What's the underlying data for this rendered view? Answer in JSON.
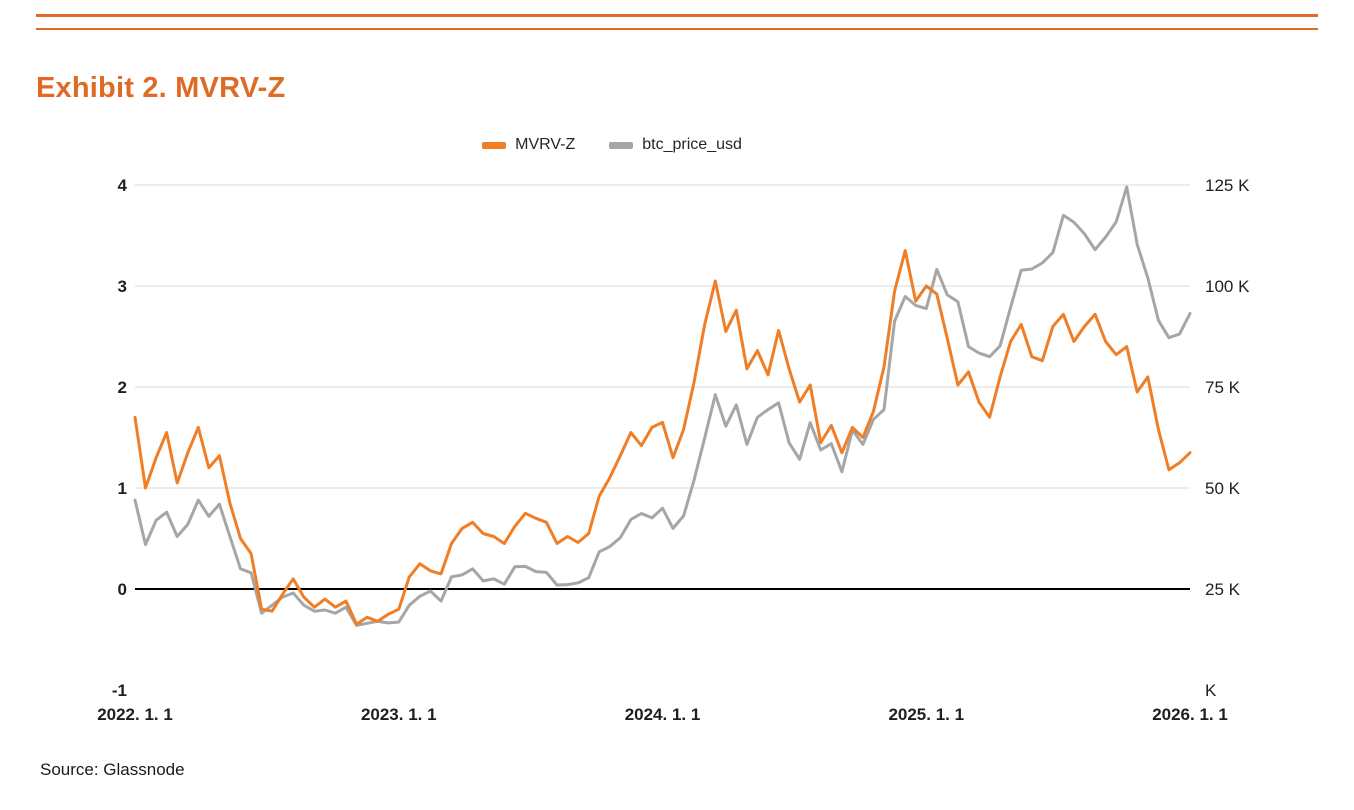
{
  "page": {
    "title": "Exhibit 2. MVRV-Z",
    "source": "Source: Glassnode",
    "accent_color": "#DE6A26",
    "grid_color": "#D9D9D9",
    "zero_line_color": "#000000"
  },
  "chart_data": {
    "type": "line",
    "title": "Exhibit 2. MVRV-Z",
    "legend_position": "top-center",
    "grid": true,
    "left_axis": {
      "range": [
        -1,
        4
      ],
      "ticks": [
        {
          "label": "4",
          "value": 4
        },
        {
          "label": "3",
          "value": 3
        },
        {
          "label": "2",
          "value": 2
        },
        {
          "label": "1",
          "value": 1
        },
        {
          "label": "0",
          "value": 0
        },
        {
          "label": "-1",
          "value": -1
        }
      ]
    },
    "right_axis": {
      "unit": "K",
      "range_k": [
        0,
        125
      ],
      "ticks": [
        {
          "label": "125 K",
          "value_k": 125
        },
        {
          "label": "100 K",
          "value_k": 100
        },
        {
          "label": "75 K",
          "value_k": 75
        },
        {
          "label": "50 K",
          "value_k": 50
        },
        {
          "label": "25 K",
          "value_k": 25
        },
        {
          "label": "K",
          "value_k": 0
        }
      ]
    },
    "x_axis": {
      "range": [
        2022,
        2026
      ],
      "ticks": [
        {
          "label": "2022. 1. 1",
          "year": 2022
        },
        {
          "label": "2023. 1. 1",
          "year": 2023
        },
        {
          "label": "2024. 1. 1",
          "year": 2024
        },
        {
          "label": "2025. 1. 1",
          "year": 2025
        },
        {
          "label": "2026. 1. 1",
          "year": 2026
        }
      ]
    },
    "x": [
      2022.0,
      2022.04,
      2022.08,
      2022.12,
      2022.16,
      2022.2,
      2022.24,
      2022.28,
      2022.32,
      2022.36,
      2022.4,
      2022.44,
      2022.48,
      2022.52,
      2022.56,
      2022.6,
      2022.64,
      2022.68,
      2022.72,
      2022.76,
      2022.8,
      2022.84,
      2022.88,
      2022.92,
      2022.96,
      2023.0,
      2023.04,
      2023.08,
      2023.12,
      2023.16,
      2023.2,
      2023.24,
      2023.28,
      2023.32,
      2023.36,
      2023.4,
      2023.44,
      2023.48,
      2023.52,
      2023.56,
      2023.6,
      2023.64,
      2023.68,
      2023.72,
      2023.76,
      2023.8,
      2023.84,
      2023.88,
      2023.92,
      2023.96,
      2024.0,
      2024.04,
      2024.08,
      2024.12,
      2024.16,
      2024.2,
      2024.24,
      2024.28,
      2024.32,
      2024.36,
      2024.4,
      2024.44,
      2024.48,
      2024.52,
      2024.56,
      2024.6,
      2024.64,
      2024.68,
      2024.72,
      2024.76,
      2024.8,
      2024.84,
      2024.88,
      2024.92,
      2024.96,
      2025.0,
      2025.04,
      2025.08,
      2025.12,
      2025.16,
      2025.2,
      2025.24,
      2025.28,
      2025.32,
      2025.36,
      2025.4,
      2025.44,
      2025.48,
      2025.52,
      2025.56,
      2025.6,
      2025.64,
      2025.68,
      2025.72,
      2025.76,
      2025.8,
      2025.84,
      2025.88,
      2025.92,
      2025.96,
      2026.0
    ],
    "series": [
      {
        "name": "MVRV-Z",
        "axis": "left",
        "color": "#F07E26",
        "values": [
          1.7,
          1.0,
          1.3,
          1.55,
          1.05,
          1.35,
          1.6,
          1.2,
          1.32,
          0.85,
          0.5,
          0.35,
          -0.2,
          -0.22,
          -0.05,
          0.1,
          -0.08,
          -0.18,
          -0.1,
          -0.18,
          -0.12,
          -0.35,
          -0.28,
          -0.32,
          -0.25,
          -0.2,
          0.12,
          0.25,
          0.18,
          0.15,
          0.45,
          0.6,
          0.66,
          0.55,
          0.52,
          0.45,
          0.62,
          0.75,
          0.7,
          0.66,
          0.45,
          0.52,
          0.46,
          0.55,
          0.92,
          1.1,
          1.32,
          1.55,
          1.42,
          1.6,
          1.65,
          1.3,
          1.58,
          2.05,
          2.62,
          3.05,
          2.55,
          2.76,
          2.18,
          2.36,
          2.12,
          2.56,
          2.18,
          1.85,
          2.02,
          1.45,
          1.62,
          1.35,
          1.6,
          1.5,
          1.76,
          2.2,
          2.95,
          3.35,
          2.85,
          3.0,
          2.92,
          2.48,
          2.02,
          2.15,
          1.85,
          1.7,
          2.1,
          2.45,
          2.62,
          2.3,
          2.26,
          2.6,
          2.72,
          2.45,
          2.6,
          2.72,
          2.45,
          2.32,
          2.4,
          1.95,
          2.1,
          1.58,
          1.18,
          1.25,
          1.35
        ]
      },
      {
        "name": "btc_price_usd",
        "axis": "right",
        "color": "#A6A6A6",
        "values_k": [
          47,
          36,
          42,
          44,
          38,
          41,
          47,
          43,
          46,
          38,
          30,
          29,
          19,
          21,
          23,
          24,
          21,
          19.5,
          19.8,
          19,
          20.5,
          16,
          16.5,
          17,
          16.6,
          16.8,
          21,
          23.2,
          24.5,
          22,
          28,
          28.5,
          30,
          27,
          27.5,
          26.2,
          30.5,
          30.6,
          29.3,
          29.1,
          26,
          26.1,
          26.5,
          27.8,
          34.2,
          35.5,
          37.7,
          42.2,
          43.7,
          42.6,
          45,
          40,
          43.1,
          52,
          62.4,
          73.1,
          65.3,
          70.6,
          60.8,
          67.5,
          69.4,
          71.1,
          61.2,
          57.1,
          66.2,
          59.4,
          61,
          54,
          64.3,
          60.8,
          67,
          69.4,
          91.3,
          97.4,
          95.2,
          94.4,
          104.1,
          97.8,
          96.1,
          85,
          83.4,
          82.5,
          85.2,
          94.7,
          103.9,
          104.2,
          105.7,
          108.3,
          117.5,
          115.8,
          112.9,
          109,
          112.1,
          115.9,
          124.5,
          110.3,
          102,
          91.5,
          87.2,
          88.1,
          93.2
        ]
      }
    ]
  }
}
